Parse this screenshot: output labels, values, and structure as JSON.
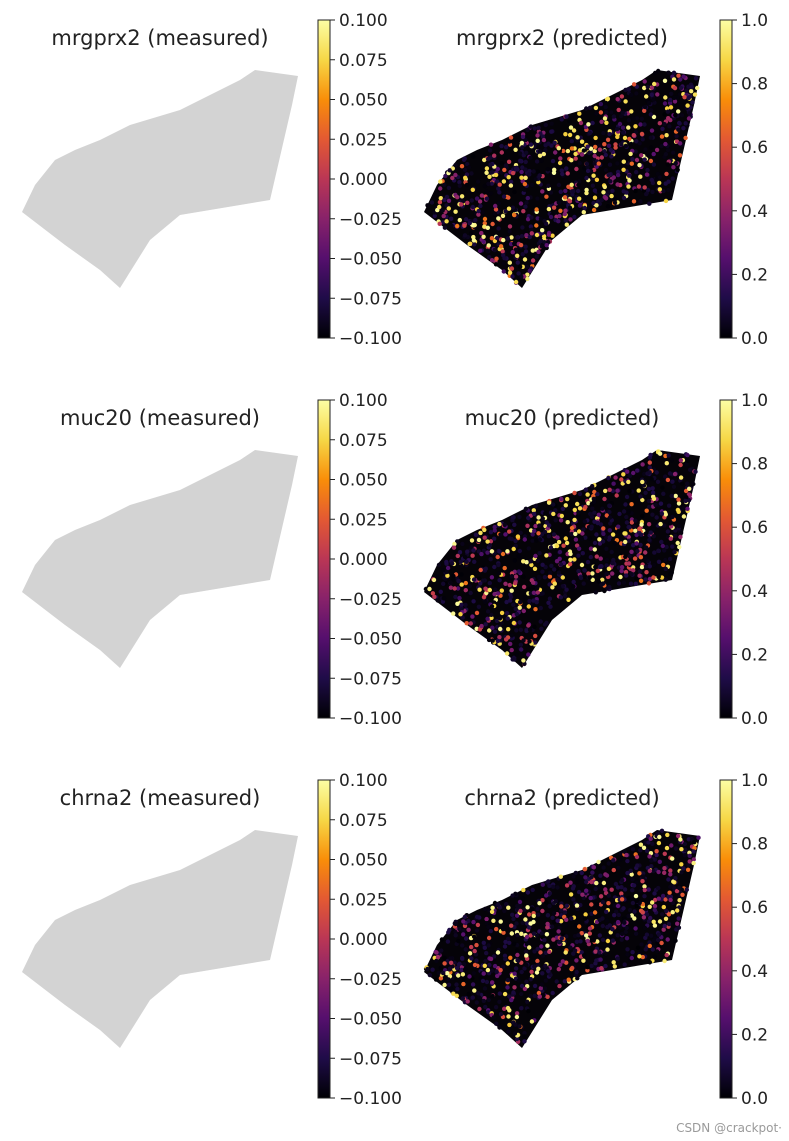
{
  "figure": {
    "watermark": "CSDN @crackpot·"
  },
  "chart_data": [
    {
      "type": "scatter",
      "title": "mrgprx2 (measured)",
      "point_color": "#d3d3d3",
      "colorbar": {
        "colormap": "inferno",
        "min": -0.1,
        "max": 0.1,
        "ticks": [
          "0.100",
          "0.075",
          "0.050",
          "0.025",
          "0.000",
          "−0.025",
          "−0.050",
          "−0.075",
          "−0.100"
        ]
      }
    },
    {
      "type": "scatter",
      "title": "mrgprx2 (predicted)",
      "colorbar": {
        "colormap": "inferno",
        "min": 0.0,
        "max": 1.0,
        "ticks": [
          "1.0",
          "0.8",
          "0.6",
          "0.4",
          "0.2",
          "0.0"
        ]
      }
    },
    {
      "type": "scatter",
      "title": "muc20 (measured)",
      "point_color": "#d3d3d3",
      "colorbar": {
        "colormap": "inferno",
        "min": -0.1,
        "max": 0.1,
        "ticks": [
          "0.100",
          "0.075",
          "0.050",
          "0.025",
          "0.000",
          "−0.025",
          "−0.050",
          "−0.075",
          "−0.100"
        ]
      }
    },
    {
      "type": "scatter",
      "title": "muc20 (predicted)",
      "colorbar": {
        "colormap": "inferno",
        "min": 0.0,
        "max": 1.0,
        "ticks": [
          "1.0",
          "0.8",
          "0.6",
          "0.4",
          "0.2",
          "0.0"
        ]
      }
    },
    {
      "type": "scatter",
      "title": "chrna2 (measured)",
      "point_color": "#d3d3d3",
      "colorbar": {
        "colormap": "inferno",
        "min": -0.1,
        "max": 0.1,
        "ticks": [
          "0.100",
          "0.075",
          "0.050",
          "0.025",
          "0.000",
          "−0.025",
          "−0.050",
          "−0.075",
          "−0.100"
        ]
      }
    },
    {
      "type": "scatter",
      "title": "chrna2 (predicted)",
      "colorbar": {
        "colormap": "inferno",
        "min": 0.0,
        "max": 1.0,
        "ticks": [
          "1.0",
          "0.8",
          "0.6",
          "0.4",
          "0.2",
          "0.0"
        ]
      }
    }
  ]
}
